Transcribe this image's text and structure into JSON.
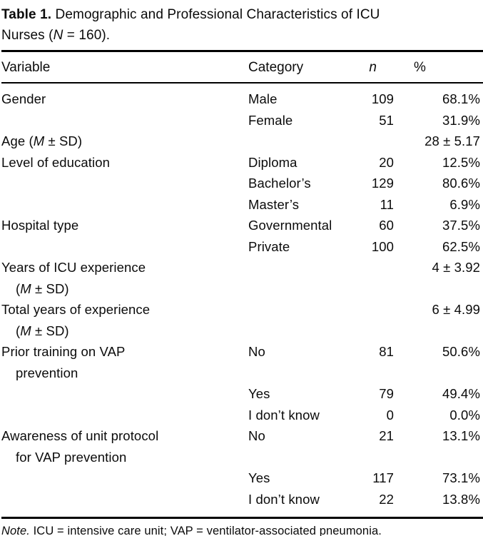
{
  "title": {
    "label": "Table 1.",
    "line1": "Demographic and Professional Characteristics of ICU",
    "line2": "Nurses (*N* = 160)."
  },
  "columns": {
    "variable": "Variable",
    "category": "Category",
    "n": "*n*",
    "pct": "%"
  },
  "rows": [
    {
      "variable": "Gender",
      "variable2": "",
      "category": "Male",
      "n": "109",
      "pct": "68.1%"
    },
    {
      "variable": "",
      "variable2": "",
      "category": "Female",
      "n": "51",
      "pct": "31.9%"
    },
    {
      "variable": "Age (*M* ± SD)",
      "variable2": "",
      "category": "",
      "n": "",
      "pct": "28 ± 5.17"
    },
    {
      "variable": "Level of education",
      "variable2": "",
      "category": "Diploma",
      "n": "20",
      "pct": "12.5%"
    },
    {
      "variable": "",
      "variable2": "",
      "category": "Bachelor’s",
      "n": "129",
      "pct": "80.6%"
    },
    {
      "variable": "",
      "variable2": "",
      "category": "Master’s",
      "n": "11",
      "pct": "6.9%"
    },
    {
      "variable": "Hospital type",
      "variable2": "",
      "category": "Governmental",
      "n": "60",
      "pct": "37.5%"
    },
    {
      "variable": "",
      "variable2": "",
      "category": "Private",
      "n": "100",
      "pct": "62.5%"
    },
    {
      "variable": "Years of ICU experience",
      "variable2": "(*M* ± SD)",
      "category": "",
      "n": "",
      "pct": "4 ± 3.92"
    },
    {
      "variable": "Total years of experience",
      "variable2": "(*M* ± SD)",
      "category": "",
      "n": "",
      "pct": "6 ± 4.99"
    },
    {
      "variable": "Prior training on VAP",
      "variable2": "prevention",
      "category": "No",
      "n": "81",
      "pct": "50.6%"
    },
    {
      "variable": "",
      "variable2": "",
      "category": "Yes",
      "n": "79",
      "pct": "49.4%"
    },
    {
      "variable": "",
      "variable2": "",
      "category": "I don’t know",
      "n": "0",
      "pct": "0.0%"
    },
    {
      "variable": "Awareness of unit protocol",
      "variable2": "for VAP prevention",
      "category": "No",
      "n": "21",
      "pct": "13.1%"
    },
    {
      "variable": "",
      "variable2": "",
      "category": "Yes",
      "n": "117",
      "pct": "73.1%"
    },
    {
      "variable": "",
      "variable2": "",
      "category": "I don’t know",
      "n": "22",
      "pct": "13.8%"
    }
  ],
  "note": "*Note.* ICU = intensive care unit; VAP = ventilator-associated pneumonia.",
  "colors": {
    "text": "#0b0b0b",
    "background": "#ffffff",
    "rule": "#000000"
  }
}
